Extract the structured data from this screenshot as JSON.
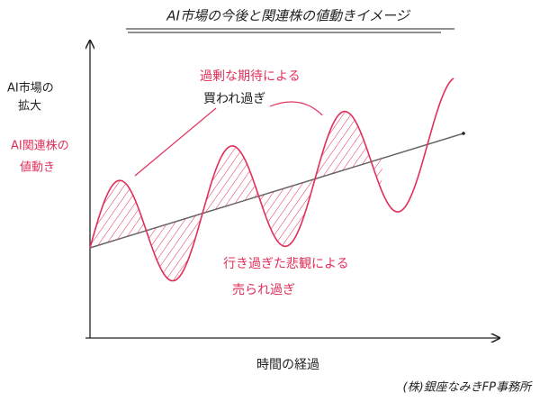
{
  "title": "AI市場の今後と関連株の値動きイメージ",
  "y_axis_label": [
    "AI市場の",
    "拡大"
  ],
  "stock_label": [
    "AI関連株の",
    "値動き"
  ],
  "overbought_note": [
    "過剰な期待による",
    "買われ過ぎ"
  ],
  "oversold_note": [
    "行き過ぎた悲観による",
    "売られ過ぎ"
  ],
  "x_axis_label": "時間の経過",
  "credit": "(株)銀座なみきFP事務所"
}
